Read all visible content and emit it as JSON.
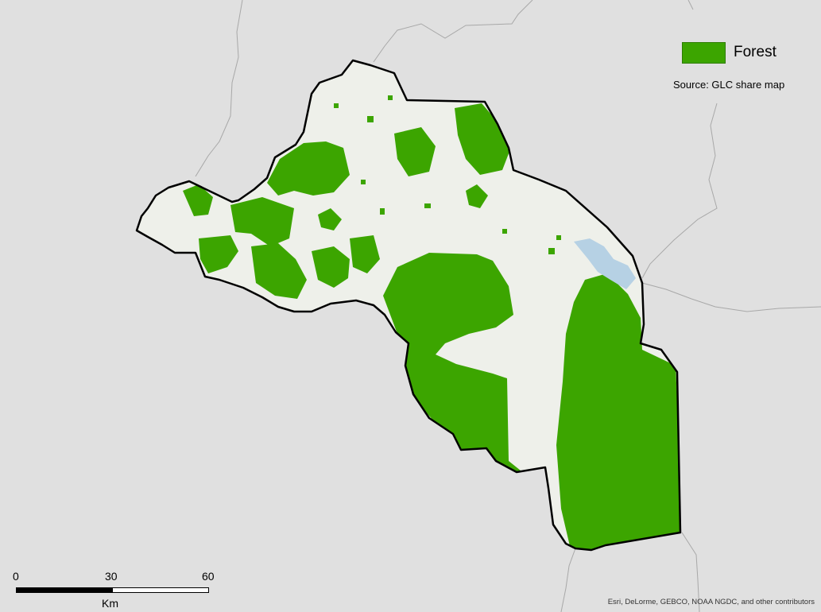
{
  "legend": {
    "label": "Forest",
    "color": "#3ca500"
  },
  "source": "Source: GLC share map",
  "scale_bar": {
    "ticks": [
      "0",
      "30",
      "60"
    ],
    "unit": "Km"
  },
  "attribution": "Esri, DeLorme, GEBCO, NOAA NGDC, and other contributors",
  "colors": {
    "background": "#e0e0e0",
    "region_fill": "#eef0ea",
    "water": "#b6d1e4",
    "forest": "#3ca500",
    "outline": "#000000",
    "admin_lines": "#a8a8a8"
  }
}
